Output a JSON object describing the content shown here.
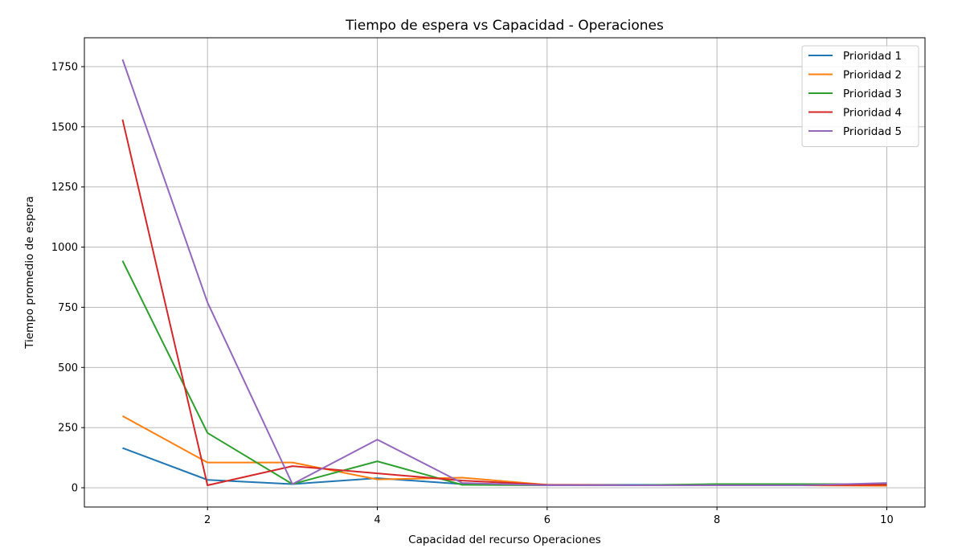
{
  "chart_data": {
    "type": "line",
    "title": "Tiempo de espera vs Capacidad - Operaciones",
    "xlabel": "Capacidad del recurso Operaciones",
    "ylabel": "Tiempo promedio de espera",
    "x": [
      1,
      2,
      3,
      4,
      5,
      6,
      7,
      8,
      9,
      10
    ],
    "xlim": [
      0.55,
      10.45
    ],
    "ylim": [
      -80,
      1870
    ],
    "xticks": [
      2,
      4,
      6,
      8,
      10
    ],
    "yticks": [
      0,
      250,
      500,
      750,
      1000,
      1250,
      1500,
      1750
    ],
    "grid": true,
    "legend_position": "top-right",
    "series": [
      {
        "name": "Prioridad 1",
        "color": "#1f77b4",
        "values": [
          165,
          33,
          15,
          40,
          15,
          12,
          12,
          12,
          12,
          12
        ]
      },
      {
        "name": "Prioridad 2",
        "color": "#ff7f0e",
        "values": [
          298,
          105,
          105,
          35,
          42,
          12,
          10,
          10,
          10,
          8
        ]
      },
      {
        "name": "Prioridad 3",
        "color": "#2ca02c",
        "values": [
          943,
          228,
          15,
          110,
          12,
          10,
          10,
          15,
          15,
          15
        ]
      },
      {
        "name": "Prioridad 4",
        "color": "#d62728",
        "values": [
          1530,
          10,
          90,
          60,
          30,
          12,
          10,
          10,
          10,
          12
        ]
      },
      {
        "name": "Prioridad 5",
        "color": "#9467bd",
        "values": [
          1780,
          770,
          15,
          200,
          20,
          10,
          10,
          10,
          10,
          20
        ]
      }
    ]
  }
}
